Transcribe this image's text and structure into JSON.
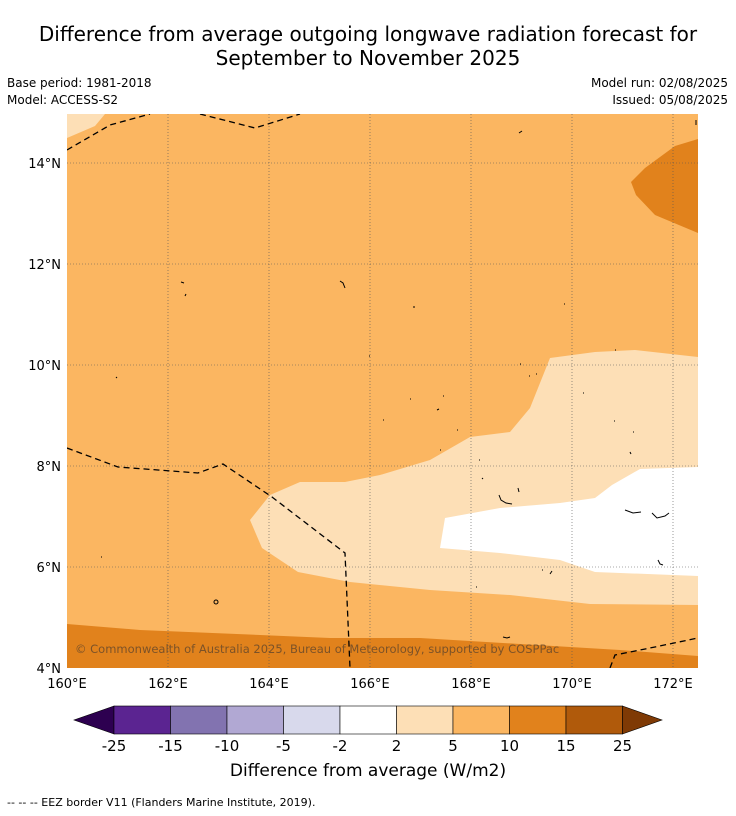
{
  "title": {
    "line1": "Difference from average outgoing longwave radiation forecast for",
    "line2": "September to November 2025"
  },
  "meta": {
    "base_period": "Base period: 1981-2018",
    "model": "Model: ACCESS-S2",
    "model_run": "Model run: 02/08/2025",
    "issued": "Issued: 05/08/2025"
  },
  "map": {
    "lat_ticks": [
      "4°N",
      "6°N",
      "8°N",
      "10°N",
      "12°N",
      "14°N"
    ],
    "lon_ticks": [
      "160°E",
      "162°E",
      "164°E",
      "166°E",
      "168°E",
      "170°E",
      "172°E"
    ],
    "lat_range": [
      4,
      14.9
    ],
    "lon_range": [
      160,
      172.5
    ],
    "copyright": "© Commonwealth of Australia 2025, Bureau of Meteorology, supported by COSPPac",
    "category_colors": {
      "5_to_10": "#fbb661",
      "2_to_5": "#fddfb6",
      "minus2_to_2": "#ffffff",
      "10_to_15": "#e1821c",
      "15_to_25": "#b05a0b"
    },
    "islands_icon": "island-dots",
    "eez_line_icon": "dashed-eez-border"
  },
  "colorbar": {
    "ticks": [
      "-25",
      "-15",
      "-10",
      "-5",
      "-2",
      "2",
      "5",
      "10",
      "15",
      "25"
    ],
    "colors": [
      "#5b2491",
      "#8273b0",
      "#b1a8d3",
      "#d8d9ec",
      "#ffffff",
      "#fddfb6",
      "#fbb661",
      "#e1821c",
      "#b05a0b"
    ],
    "under_color": "#2d0050",
    "over_color": "#7f3a05",
    "label": "Difference from average (W/m2)"
  },
  "footer": {
    "eez_legend": "--  --  -- EEZ border V11 (Flanders Marine Institute, 2019)."
  }
}
